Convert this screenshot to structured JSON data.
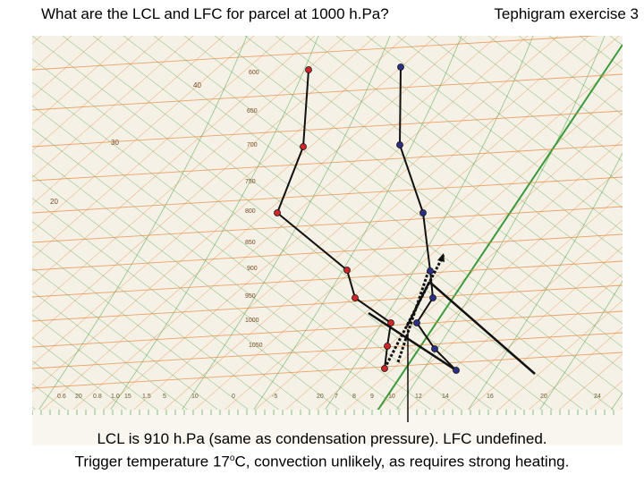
{
  "header": {
    "question": "What are the LCL and LFC for parcel at 1000 h.Pa?",
    "exercise": "Tephigram exercise 3"
  },
  "pressure_labels": [
    "600",
    "650",
    "700",
    "750",
    "800",
    "850",
    "900",
    "950",
    "1000",
    "1050"
  ],
  "bottom_labels": [
    "0.6",
    "20",
    "0.8",
    "1.0",
    "15",
    "1.5",
    "5",
    "10",
    "0",
    "-5",
    "20",
    "7",
    "8",
    "9",
    "10",
    "12",
    "14",
    "16",
    "20",
    "24",
    "28"
  ],
  "scale_labels": [
    "20",
    "30",
    "40"
  ],
  "profiles": {
    "temperature_color": "#d0262a",
    "dewpoint_color": "#2b2f86",
    "isobar_color": "#e8883a",
    "saturated_adiabat_color": "#3a9a3a"
  },
  "caption": {
    "line1": "LCL is 910 h.Pa (same as condensation pressure). LFC undefined.",
    "line2_start": "Trigger temperature 17",
    "line2_sup": "o",
    "line2_end": "C, convection unlikely, as requires strong heating."
  }
}
